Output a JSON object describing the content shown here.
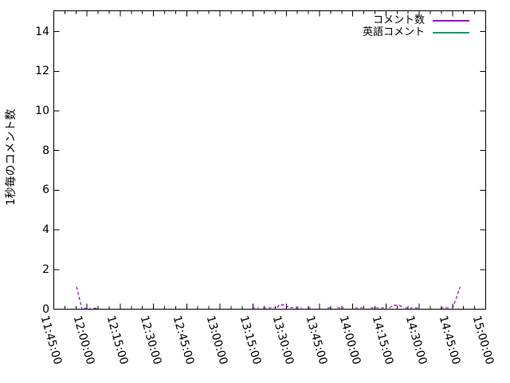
{
  "colors": {
    "background": "#ffffff",
    "axis": "#000000",
    "comment_series": "#9400d3",
    "english_series": "#009e73"
  },
  "chart_data": {
    "type": "line",
    "title": "",
    "xlabel": "",
    "ylabel": "1秒毎のコメント数",
    "grid": false,
    "legend_position": "top-right-inside",
    "legend": [
      {
        "label": "コメント数",
        "color": "#9400d3"
      },
      {
        "label": "英語コメント",
        "color": "#009e73"
      }
    ],
    "x_axis": {
      "tick_labels": [
        "11:45:00",
        "12:00:00",
        "12:15:00",
        "12:30:00",
        "12:45:00",
        "13:00:00",
        "13:15:00",
        "13:30:00",
        "13:45:00",
        "14:00:00",
        "14:15:00",
        "14:30:00",
        "14:45:00",
        "15:00:00"
      ],
      "major_step_minutes": 15,
      "minor_step_minutes": 5,
      "range_minutes": [
        0,
        195
      ],
      "start_time": "11:45:00",
      "end_time": "15:00:00"
    },
    "y_axis": {
      "tick_values": [
        0,
        2,
        4,
        6,
        8,
        10,
        12,
        14
      ],
      "lim": [
        0,
        15.05
      ]
    },
    "series": [
      {
        "name": "コメント数",
        "color": "#9400d3",
        "style": "dashed",
        "segments_min_value": [
          [
            [
              10.3,
              1.13
            ],
            [
              12.7,
              0.02
            ]
          ],
          [
            [
              13.7,
              0.05
            ],
            [
              16.5,
              0.05
            ]
          ],
          [
            [
              18.0,
              0.05
            ],
            [
              19.7,
              0.05
            ]
          ],
          [
            [
              89.5,
              0.07
            ],
            [
              92.5,
              0.07
            ]
          ],
          [
            [
              94.5,
              0.07
            ],
            [
              99.5,
              0.07
            ]
          ],
          [
            [
              100.8,
              0.08
            ],
            [
              101.8,
              0.22
            ],
            [
              104.5,
              0.22
            ],
            [
              106.0,
              0.08
            ],
            [
              109.5,
              0.07
            ],
            [
              112.0,
              0.07
            ]
          ],
          [
            [
              114.5,
              0.07
            ],
            [
              116.5,
              0.07
            ]
          ],
          [
            [
              123.5,
              0.07
            ],
            [
              126.0,
              0.07
            ]
          ],
          [
            [
              128.0,
              0.07
            ],
            [
              131.0,
              0.07
            ]
          ],
          [
            [
              136.0,
              0.07
            ],
            [
              139.5,
              0.07
            ]
          ],
          [
            [
              143.0,
              0.07
            ],
            [
              149.5,
              0.07
            ]
          ],
          [
            [
              151.5,
              0.07
            ],
            [
              153.5,
              0.2
            ],
            [
              156.0,
              0.2
            ],
            [
              158.0,
              0.07
            ]
          ],
          [
            [
              158.6,
              0.07
            ],
            [
              162.0,
              0.07
            ]
          ],
          [
            [
              163.0,
              0.07
            ],
            [
              164.7,
              0.07
            ]
          ],
          [
            [
              174.5,
              0.07
            ],
            [
              178.4,
              0.07
            ]
          ],
          [
            [
              180.0,
              0.03
            ],
            [
              183.5,
              1.13
            ]
          ]
        ]
      },
      {
        "name": "英語コメント",
        "color": "#009e73",
        "style": "dashed",
        "segments_min_value": []
      }
    ]
  }
}
